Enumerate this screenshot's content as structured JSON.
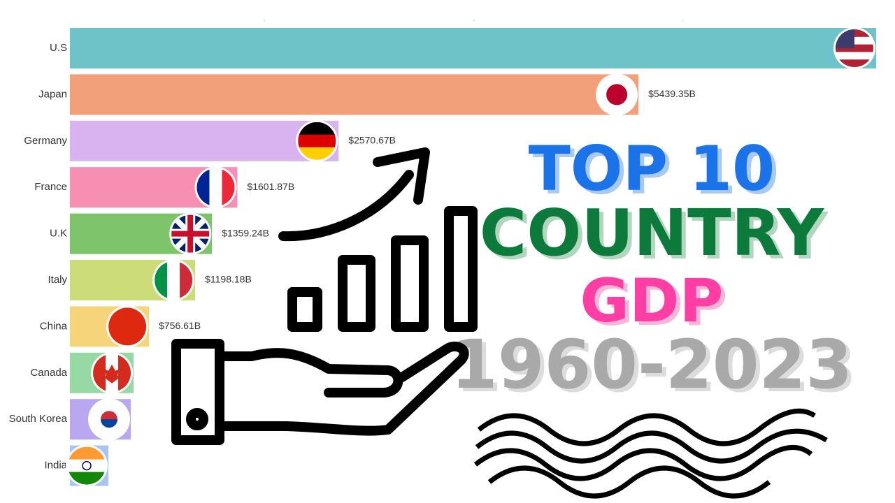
{
  "chart_data": {
    "type": "hbar",
    "title_lines": [
      "TOP 10",
      "COUNTRY",
      "GDP",
      "1960-2023"
    ],
    "categories": [
      "U.S",
      "Japan",
      "Germany",
      "France",
      "U.K",
      "Italy",
      "China",
      "Canada",
      "South Korea",
      "India"
    ],
    "values": [
      7713,
      5439.35,
      2570.67,
      1601.87,
      1359.24,
      1198.18,
      756.61,
      609,
      582,
      368
    ],
    "value_labels": [
      null,
      "$5439.35B",
      "$2570.67B",
      "$1601.87B",
      "$1359.24B",
      "$1198.18B",
      "$756.61B",
      null,
      null,
      null
    ],
    "colors": [
      "#6ec3c9",
      "#f2a07a",
      "#d9b3ef",
      "#f78fb3",
      "#7ec46a",
      "#cbdc78",
      "#f5d47a",
      "#97d9a5",
      "#b9a8f0",
      "#a9c4f0"
    ],
    "xlim": [
      0,
      7713
    ]
  }
}
